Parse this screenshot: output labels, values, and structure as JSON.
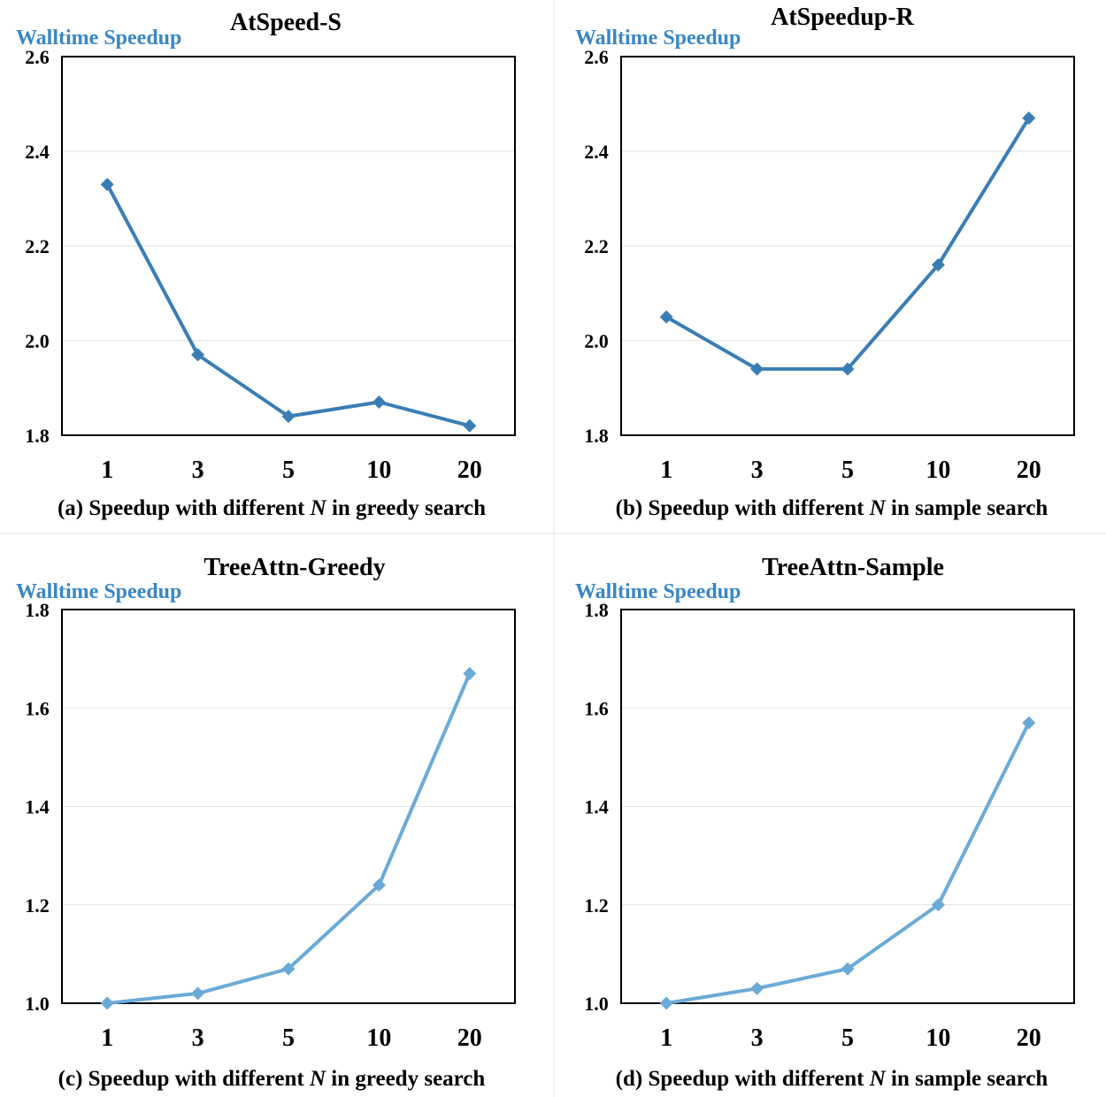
{
  "chart_data": [
    {
      "type": "line",
      "title": "AtSpeed-S",
      "ylabel": "Walltime Speedup",
      "caption": {
        "prefix": "(a) Speedup with different ",
        "var": "N",
        "suffix": " in greedy search"
      },
      "categories": [
        "1",
        "3",
        "5",
        "10",
        "20"
      ],
      "series": [
        {
          "values": [
            2.33,
            1.97,
            1.84,
            1.87,
            1.82
          ]
        }
      ],
      "ylim": [
        1.8,
        2.6
      ],
      "yticks": [
        "1.8",
        "2.0",
        "2.2",
        "2.4",
        "2.6"
      ],
      "grid": true,
      "line_color": "#3a7db5",
      "label_color": "#3a86c4"
    },
    {
      "type": "line",
      "title": "AtSpeedup-R",
      "ylabel": "Walltime Speedup",
      "caption": {
        "prefix": "(b) Speedup with different ",
        "var": "N",
        "suffix": " in sample search"
      },
      "categories": [
        "1",
        "3",
        "5",
        "10",
        "20"
      ],
      "series": [
        {
          "values": [
            2.05,
            1.94,
            1.94,
            2.16,
            2.47
          ]
        }
      ],
      "ylim": [
        1.8,
        2.6
      ],
      "yticks": [
        "1.8",
        "2.0",
        "2.2",
        "2.4",
        "2.6"
      ],
      "grid": true,
      "line_color": "#3a7db5",
      "label_color": "#3a86c4"
    },
    {
      "type": "line",
      "title": "TreeAttn-Greedy",
      "ylabel": "Walltime Speedup",
      "caption": {
        "prefix": "(c) Speedup with different ",
        "var": "N",
        "suffix": " in greedy search"
      },
      "categories": [
        "1",
        "3",
        "5",
        "10",
        "20"
      ],
      "series": [
        {
          "values": [
            1.0,
            1.02,
            1.07,
            1.24,
            1.67
          ]
        }
      ],
      "ylim": [
        1.0,
        1.8
      ],
      "yticks": [
        "1.0",
        "1.2",
        "1.4",
        "1.6",
        "1.8"
      ],
      "grid": true,
      "line_color": "#6aaad6",
      "label_color": "#3a86c4"
    },
    {
      "type": "line",
      "title": "TreeAttn-Sample",
      "ylabel": "Walltime Speedup",
      "caption": {
        "prefix": "(d) Speedup with different ",
        "var": "N",
        "suffix": " in sample search"
      },
      "categories": [
        "1",
        "3",
        "5",
        "10",
        "20"
      ],
      "series": [
        {
          "values": [
            1.0,
            1.03,
            1.07,
            1.2,
            1.57
          ]
        }
      ],
      "ylim": [
        1.0,
        1.8
      ],
      "yticks": [
        "1.0",
        "1.2",
        "1.4",
        "1.6",
        "1.8"
      ],
      "grid": true,
      "line_color": "#6aaad6",
      "label_color": "#3a86c4"
    }
  ]
}
